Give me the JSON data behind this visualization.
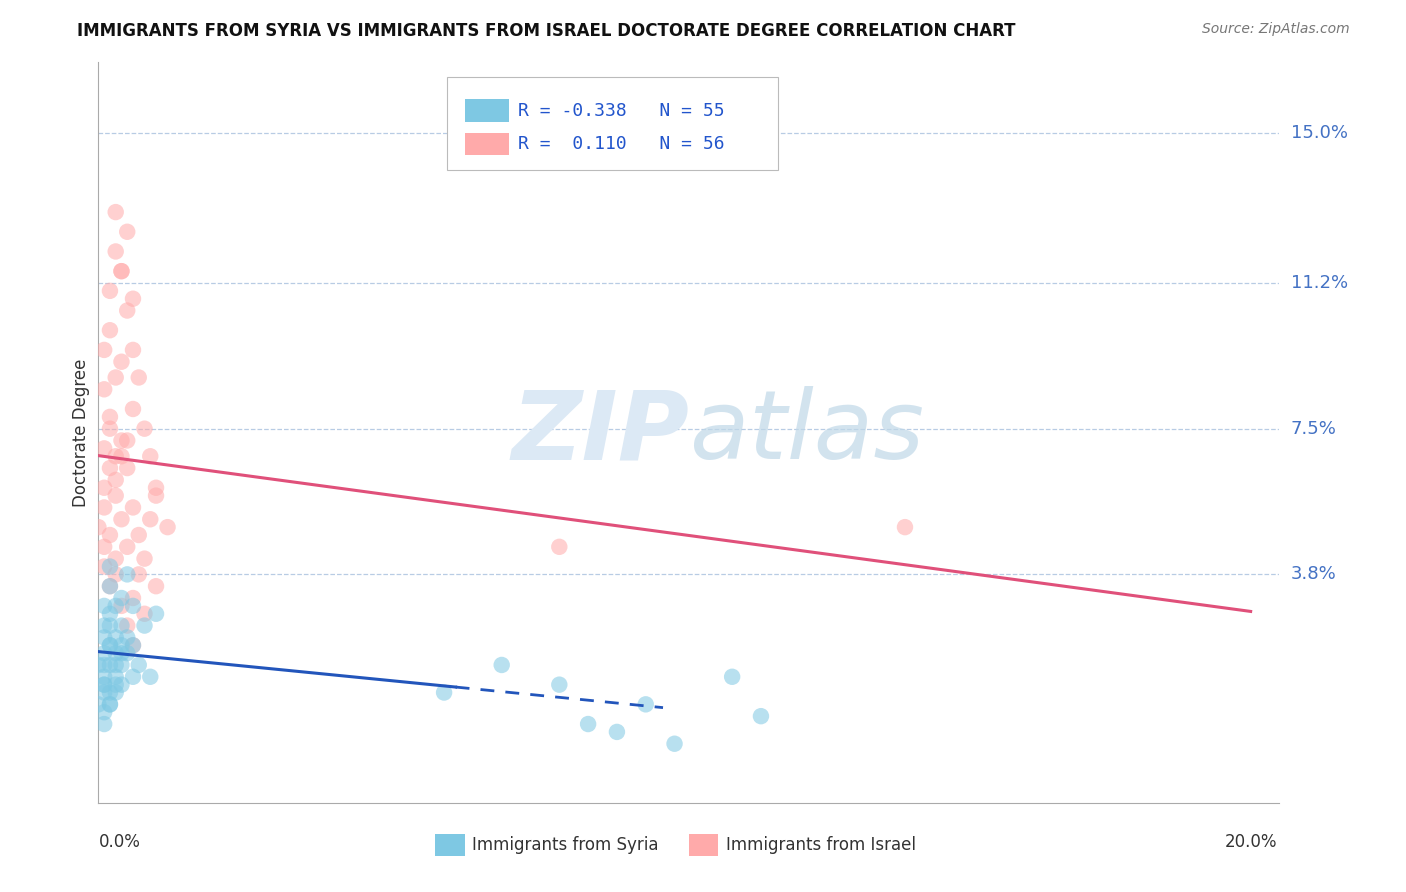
{
  "title": "IMMIGRANTS FROM SYRIA VS IMMIGRANTS FROM ISRAEL DOCTORATE DEGREE CORRELATION CHART",
  "source_text": "Source: ZipAtlas.com",
  "ylabel": "Doctorate Degree",
  "xlim": [
    0.0,
    0.205
  ],
  "ylim": [
    -0.02,
    0.168
  ],
  "ytick_labels": [
    "15.0%",
    "11.2%",
    "7.5%",
    "3.8%"
  ],
  "ytick_positions": [
    0.15,
    0.112,
    0.075,
    0.038
  ],
  "xtick_bottom_labels": [
    "0.0%",
    "20.0%"
  ],
  "syria_color": "#7ec8e3",
  "israel_color": "#ffaaaa",
  "syria_line_color": "#2255bb",
  "israel_line_color": "#e0507a",
  "background_color": "#ffffff",
  "grid_color": "#b8cce4",
  "watermark_color": "#dce9f5",
  "syria_R": -0.338,
  "syria_N": 55,
  "israel_R": 0.11,
  "israel_N": 56,
  "syria_scatter_x": [
    0.0,
    0.001,
    0.001,
    0.001,
    0.001,
    0.001,
    0.001,
    0.001,
    0.002,
    0.002,
    0.002,
    0.002,
    0.002,
    0.002,
    0.003,
    0.003,
    0.003,
    0.003,
    0.004,
    0.004,
    0.004,
    0.004,
    0.005,
    0.005,
    0.006,
    0.006,
    0.007,
    0.008,
    0.009,
    0.01,
    0.0,
    0.001,
    0.001,
    0.002,
    0.002,
    0.003,
    0.003,
    0.004,
    0.005,
    0.006,
    0.001,
    0.001,
    0.002,
    0.002,
    0.003,
    0.004,
    0.06,
    0.08,
    0.095,
    0.11,
    0.1,
    0.115,
    0.07,
    0.09,
    0.085
  ],
  "syria_scatter_y": [
    0.015,
    0.018,
    0.022,
    0.01,
    0.008,
    0.025,
    0.03,
    0.012,
    0.035,
    0.02,
    0.005,
    0.04,
    0.015,
    0.028,
    0.018,
    0.022,
    0.012,
    0.008,
    0.032,
    0.015,
    0.025,
    0.01,
    0.038,
    0.018,
    0.02,
    0.03,
    0.015,
    0.025,
    0.012,
    0.028,
    0.005,
    0.01,
    0.015,
    0.02,
    0.025,
    0.03,
    0.01,
    0.018,
    0.022,
    0.012,
    0.0,
    0.003,
    0.008,
    0.005,
    0.015,
    0.02,
    0.008,
    0.01,
    0.005,
    0.012,
    -0.005,
    0.002,
    0.015,
    -0.002,
    0.0
  ],
  "israel_scatter_x": [
    0.0,
    0.001,
    0.001,
    0.001,
    0.001,
    0.001,
    0.002,
    0.002,
    0.002,
    0.002,
    0.003,
    0.003,
    0.003,
    0.003,
    0.004,
    0.004,
    0.004,
    0.005,
    0.005,
    0.005,
    0.006,
    0.006,
    0.006,
    0.007,
    0.007,
    0.008,
    0.008,
    0.009,
    0.01,
    0.01,
    0.001,
    0.001,
    0.002,
    0.002,
    0.003,
    0.003,
    0.004,
    0.004,
    0.005,
    0.006,
    0.002,
    0.003,
    0.004,
    0.005,
    0.006,
    0.007,
    0.008,
    0.009,
    0.01,
    0.012,
    0.003,
    0.004,
    0.005,
    0.006,
    0.14,
    0.08
  ],
  "israel_scatter_y": [
    0.05,
    0.06,
    0.045,
    0.07,
    0.04,
    0.055,
    0.065,
    0.035,
    0.075,
    0.048,
    0.042,
    0.058,
    0.038,
    0.062,
    0.052,
    0.03,
    0.068,
    0.025,
    0.045,
    0.072,
    0.032,
    0.055,
    0.02,
    0.048,
    0.038,
    0.042,
    0.028,
    0.052,
    0.035,
    0.06,
    0.085,
    0.095,
    0.078,
    0.11,
    0.068,
    0.088,
    0.072,
    0.092,
    0.065,
    0.08,
    0.1,
    0.12,
    0.115,
    0.105,
    0.095,
    0.088,
    0.075,
    0.068,
    0.058,
    0.05,
    0.13,
    0.115,
    0.125,
    0.108,
    0.05,
    0.045
  ]
}
